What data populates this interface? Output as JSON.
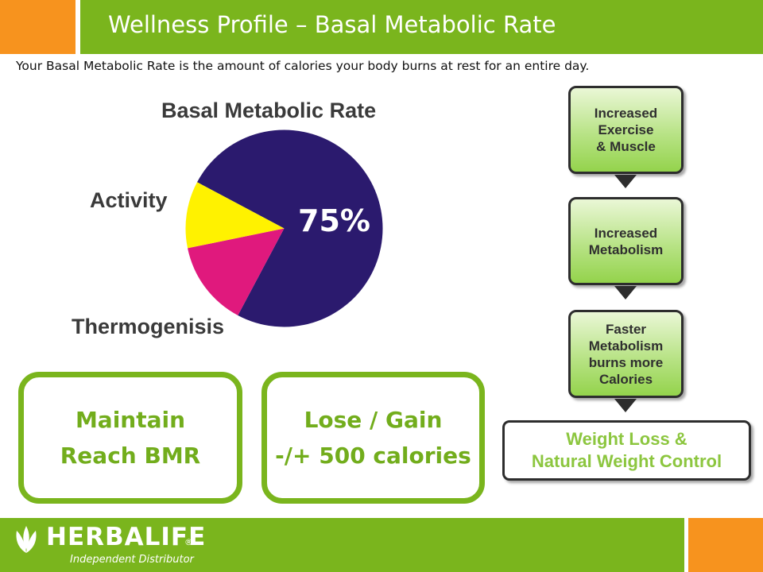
{
  "header": {
    "title": "Wellness Profile – Basal Metabolic Rate"
  },
  "intro_text": "Your Basal Metabolic Rate is the amount of calories your body burns at rest for an entire day.",
  "chart_data": {
    "type": "pie",
    "title": "Basal Metabolic Rate",
    "slices": [
      {
        "label": "",
        "value": 75,
        "display": "75%",
        "color": "#2b1a6e"
      },
      {
        "label": "Thermogenisis",
        "value": 14,
        "color": "#e0197d"
      },
      {
        "label": "Activity",
        "value": 11,
        "color": "#fff200"
      }
    ]
  },
  "boxes": {
    "maintain": {
      "line1": "Maintain",
      "line2": "Reach BMR"
    },
    "lose_gain": {
      "line1": "Lose / Gain",
      "line2": "-/+ 500 calories"
    }
  },
  "flow": {
    "steps": [
      {
        "lines": [
          "Increased",
          "Exercise",
          "& Muscle"
        ]
      },
      {
        "lines": [
          "Increased",
          "Metabolism"
        ]
      },
      {
        "lines": [
          "Faster",
          "Metabolism",
          "burns more",
          "Calories"
        ]
      }
    ],
    "result": {
      "lines": [
        "Weight Loss &",
        "Natural Weight Control"
      ]
    }
  },
  "footer": {
    "brand": "HERBALIFE",
    "registered": "®",
    "tagline": "Independent Distributor"
  },
  "colors": {
    "green": "#7ab51d",
    "orange": "#f7931e"
  }
}
